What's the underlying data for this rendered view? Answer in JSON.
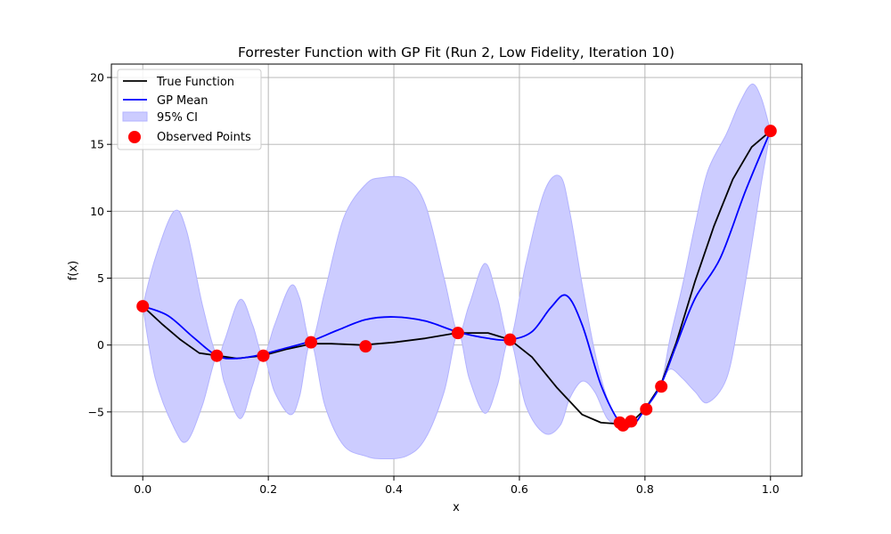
{
  "chart_data": {
    "type": "line",
    "title": "Forrester Function with GP Fit (Run 2, Low Fidelity, Iteration 10)",
    "xlabel": "x",
    "ylabel": "f(x)",
    "xlim": [
      -0.05,
      1.05
    ],
    "ylim": [
      -9.8,
      21.0
    ],
    "xticks": [
      0.0,
      0.2,
      0.4,
      0.6,
      0.8,
      1.0
    ],
    "xtick_labels": [
      "0.0",
      "0.2",
      "0.4",
      "0.6",
      "0.8",
      "1.0"
    ],
    "yticks": [
      -5,
      0,
      5,
      10,
      15,
      20
    ],
    "ytick_labels": [
      "−5",
      "0",
      "5",
      "10",
      "15",
      "20"
    ],
    "grid": true,
    "legend_position": "top-left",
    "legend": [
      "True Function",
      "GP Mean",
      "95% CI",
      "Observed Points"
    ],
    "colors": {
      "true_function": "#000000",
      "gp_mean": "#0000ff",
      "ci_fill": "#ccccff",
      "ci_edge": "#b3b3ff",
      "observed": "#ff0000",
      "grid": "#b0b0b0"
    },
    "series": [
      {
        "name": "True Function",
        "x": [
          0.0,
          0.03,
          0.06,
          0.09,
          0.12,
          0.15,
          0.19,
          0.23,
          0.27,
          0.3,
          0.35,
          0.4,
          0.45,
          0.5,
          0.55,
          0.585,
          0.62,
          0.66,
          0.7,
          0.73,
          0.76,
          0.765,
          0.78,
          0.8,
          0.825,
          0.85,
          0.88,
          0.91,
          0.94,
          0.97,
          1.0
        ],
        "y": [
          2.9,
          1.6,
          0.4,
          -0.6,
          -0.8,
          -1.0,
          -0.8,
          -0.3,
          0.1,
          0.1,
          0.0,
          0.2,
          0.5,
          0.9,
          0.9,
          0.4,
          -0.9,
          -3.2,
          -5.2,
          -5.8,
          -5.9,
          -6.0,
          -5.7,
          -4.8,
          -3.0,
          0.2,
          4.8,
          8.9,
          12.4,
          14.8,
          16.0
        ]
      },
      {
        "name": "GP Mean",
        "x": [
          0.0,
          0.04,
          0.08,
          0.118,
          0.15,
          0.19,
          0.23,
          0.268,
          0.31,
          0.355,
          0.4,
          0.45,
          0.5,
          0.55,
          0.585,
          0.62,
          0.65,
          0.675,
          0.7,
          0.73,
          0.76,
          0.78,
          0.8,
          0.825,
          0.85,
          0.88,
          0.92,
          0.96,
          1.0
        ],
        "y": [
          2.9,
          2.2,
          0.6,
          -0.8,
          -1.0,
          -0.7,
          -0.2,
          0.3,
          1.1,
          1.9,
          2.1,
          1.8,
          1.0,
          0.5,
          0.4,
          1.0,
          2.8,
          3.7,
          1.5,
          -3.0,
          -5.8,
          -6.0,
          -4.8,
          -3.0,
          0.0,
          3.5,
          6.5,
          11.5,
          16.0
        ]
      }
    ],
    "confidence_band": {
      "name": "95% CI",
      "x": [
        0.0,
        0.02,
        0.05,
        0.07,
        0.095,
        0.118,
        0.13,
        0.155,
        0.175,
        0.192,
        0.21,
        0.235,
        0.25,
        0.268,
        0.29,
        0.32,
        0.355,
        0.38,
        0.42,
        0.45,
        0.48,
        0.502,
        0.52,
        0.545,
        0.565,
        0.585,
        0.61,
        0.64,
        0.665,
        0.68,
        0.7,
        0.72,
        0.74,
        0.76,
        0.765,
        0.778,
        0.8,
        0.825,
        0.84,
        0.86,
        0.88,
        0.9,
        0.93,
        0.95,
        0.97,
        0.985,
        1.0
      ],
      "upper": [
        2.9,
        6.5,
        10.0,
        8.5,
        3.0,
        -0.8,
        0.3,
        3.4,
        1.5,
        -0.8,
        1.5,
        4.4,
        3.5,
        0.2,
        4.0,
        9.5,
        12.0,
        12.5,
        12.4,
        10.5,
        5.0,
        0.9,
        3.0,
        6.1,
        3.5,
        0.4,
        6.0,
        11.5,
        12.6,
        10.0,
        4.5,
        -0.5,
        -4.0,
        -5.8,
        -6.0,
        -5.7,
        -4.8,
        -3.0,
        0.5,
        4.5,
        9.0,
        13.0,
        15.8,
        18.0,
        19.5,
        18.5,
        16.0
      ],
      "lower": [
        2.9,
        -2.5,
        -6.2,
        -7.2,
        -4.5,
        -0.8,
        -2.8,
        -5.5,
        -3.0,
        -0.8,
        -3.5,
        -5.2,
        -3.8,
        0.2,
        -4.5,
        -7.5,
        -8.3,
        -8.5,
        -8.3,
        -7.0,
        -3.5,
        0.9,
        -2.5,
        -5.1,
        -3.0,
        0.4,
        -4.5,
        -6.6,
        -6.0,
        -4.0,
        -2.7,
        -3.5,
        -5.5,
        -6.0,
        -6.1,
        -5.8,
        -4.8,
        -3.0,
        -1.8,
        -2.5,
        -3.5,
        -4.3,
        -2.5,
        2.0,
        7.5,
        12.0,
        16.0
      ]
    },
    "observed_points": {
      "name": "Observed Points",
      "x": [
        0.0,
        0.118,
        0.192,
        0.268,
        0.355,
        0.502,
        0.585,
        0.76,
        0.765,
        0.778,
        0.802,
        0.826,
        1.0
      ],
      "y": [
        2.9,
        -0.8,
        -0.8,
        0.2,
        -0.1,
        0.9,
        0.4,
        -5.8,
        -6.0,
        -5.7,
        -4.8,
        -3.1,
        16.0
      ]
    }
  }
}
